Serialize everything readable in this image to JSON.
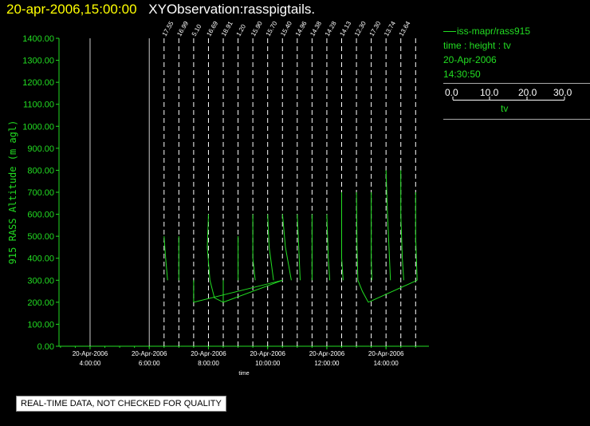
{
  "header": {
    "timestamp": "20-apr-2006,15:00:00",
    "title": "XYObservation:rasspigtails."
  },
  "legend": {
    "series_line": "iss-mapr/rass915",
    "fields": "time : height : tv",
    "date": "20-Apr-2006",
    "time": "14:30:50",
    "scale_ticks": [
      "0.0",
      "10.0",
      "20.0",
      "30.0"
    ],
    "scale_unit": "tv"
  },
  "disclaimer": "REAL-TIME DATA, NOT CHECKED FOR QUALITY",
  "colors": {
    "axis": "#22dd22",
    "trace": "#22dd22",
    "background": "#000000",
    "text": "#ffffff",
    "timestamp": "#ffff00"
  },
  "chart_data": {
    "type": "line",
    "ylabel": "915 RASS Altitude (m agl)",
    "xlabel": "time",
    "ylim": [
      0,
      1400
    ],
    "xlim_hours": [
      2.95,
      15.45
    ],
    "ytick_labels": [
      "0.00",
      "100.00",
      "200.00",
      "300.00",
      "400.00",
      "500.00",
      "600.00",
      "700.00",
      "800.00",
      "900.00",
      "1000.00",
      "1100.00",
      "1200.00",
      "1300.00",
      "1400.00"
    ],
    "xticks": [
      {
        "hour": 4,
        "date": "20-Apr-2006",
        "time": "4:00:00"
      },
      {
        "hour": 6,
        "date": "20-Apr-2006",
        "time": "6:00:00"
      },
      {
        "hour": 8,
        "date": "20-Apr-2006",
        "time": "8:00:00"
      },
      {
        "hour": 10,
        "date": "20-Apr-2006",
        "time": "10:00:00"
      },
      {
        "hour": 12,
        "date": "20-Apr-2006",
        "time": "12:00:00"
      },
      {
        "hour": 14,
        "date": "20-Apr-2006",
        "time": "14:00:00"
      }
    ],
    "solid_verticals_hours": [
      4,
      6
    ],
    "profiles": [
      {
        "hour": 6.5,
        "label": "17.55",
        "points": [
          [
            6.5,
            500
          ],
          [
            6.54,
            420
          ],
          [
            6.62,
            300
          ]
        ]
      },
      {
        "hour": 7.0,
        "label": "16.99",
        "points": [
          [
            7.0,
            500
          ],
          [
            7.0,
            300
          ]
        ]
      },
      {
        "hour": 7.5,
        "label": "5.10",
        "points": [
          [
            7.5,
            200
          ],
          [
            7.5,
            300
          ]
        ]
      },
      {
        "hour": 8.0,
        "label": "16.69",
        "points": [
          [
            8.0,
            600
          ],
          [
            7.96,
            450
          ],
          [
            8.05,
            300
          ],
          [
            8.2,
            220
          ],
          [
            8.5,
            200
          ]
        ]
      },
      {
        "hour": 8.5,
        "label": "18.91",
        "points": [
          [
            8.5,
            200
          ],
          [
            8.5,
            300
          ]
        ]
      },
      {
        "hour": 9.0,
        "label": "1.20",
        "points": [
          [
            9.0,
            500
          ],
          [
            9.0,
            300
          ]
        ]
      },
      {
        "hour": 9.5,
        "label": "15.90",
        "points": [
          [
            9.5,
            600
          ],
          [
            9.5,
            400
          ],
          [
            9.58,
            300
          ]
        ]
      },
      {
        "hour": 10.0,
        "label": "15.70",
        "points": [
          [
            10.0,
            600
          ],
          [
            10.05,
            450
          ],
          [
            10.2,
            300
          ]
        ]
      },
      {
        "hour": 10.5,
        "label": "15.40",
        "points": [
          [
            10.5,
            600
          ],
          [
            10.6,
            450
          ],
          [
            10.8,
            300
          ]
        ]
      },
      {
        "hour": 11.0,
        "label": "14.96",
        "points": [
          [
            11.0,
            600
          ],
          [
            11.05,
            450
          ],
          [
            11.1,
            300
          ]
        ]
      },
      {
        "hour": 11.5,
        "label": "14.38",
        "points": [
          [
            11.5,
            600
          ],
          [
            11.5,
            300
          ]
        ]
      },
      {
        "hour": 12.0,
        "label": "14.28",
        "points": [
          [
            12.0,
            600
          ],
          [
            12.05,
            400
          ],
          [
            12.1,
            300
          ]
        ]
      },
      {
        "hour": 12.5,
        "label": "14.13",
        "points": [
          [
            12.5,
            700
          ],
          [
            12.5,
            400
          ],
          [
            12.55,
            300
          ]
        ]
      },
      {
        "hour": 13.0,
        "label": "12.30",
        "points": [
          [
            13.0,
            700
          ],
          [
            13.02,
            450
          ],
          [
            13.05,
            300
          ],
          [
            13.2,
            250
          ],
          [
            13.4,
            200
          ]
        ]
      },
      {
        "hour": 13.5,
        "label": "17.30",
        "points": [
          [
            13.5,
            700
          ],
          [
            13.5,
            400
          ],
          [
            13.52,
            300
          ]
        ]
      },
      {
        "hour": 14.0,
        "label": "13.74",
        "points": [
          [
            14.0,
            800
          ],
          [
            14.05,
            600
          ],
          [
            14.1,
            450
          ],
          [
            14.15,
            300
          ]
        ]
      },
      {
        "hour": 14.5,
        "label": "13.64",
        "points": [
          [
            14.5,
            800
          ],
          [
            14.5,
            600
          ],
          [
            14.55,
            400
          ],
          [
            14.6,
            300
          ]
        ]
      },
      {
        "hour": 15.0,
        "label": "",
        "points": [
          [
            15.0,
            700
          ],
          [
            15.0,
            500
          ],
          [
            15.05,
            300
          ]
        ]
      }
    ],
    "connectors": [
      {
        "points": [
          [
            7.5,
            200
          ],
          [
            10.5,
            300
          ]
        ]
      },
      {
        "points": [
          [
            8.5,
            200
          ],
          [
            10.5,
            300
          ]
        ]
      },
      {
        "points": [
          [
            13.4,
            200
          ],
          [
            15.05,
            300
          ]
        ]
      }
    ]
  }
}
